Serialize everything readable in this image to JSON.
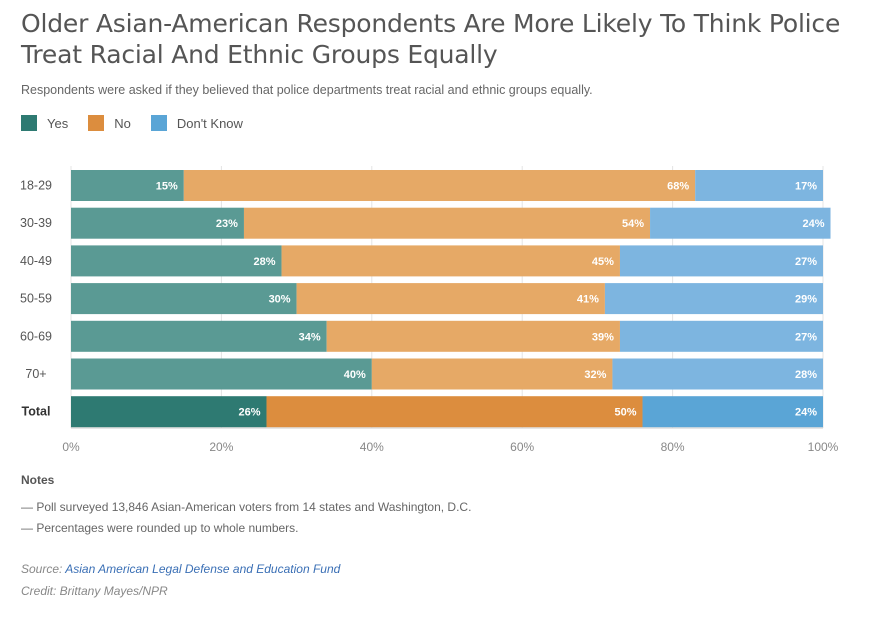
{
  "header": {
    "title": "Older Asian-American Respondents Are More Likely To Think Police Treat Racial And Ethnic Groups Equally",
    "subtitle": "Respondents were asked if they believed that police departments treat racial and ethnic groups equally."
  },
  "legend": [
    {
      "label": "Yes",
      "color": "#2e7a72"
    },
    {
      "label": "No",
      "color": "#dc8d3e"
    },
    {
      "label": "Don't Know",
      "color": "#5aa5d6"
    }
  ],
  "chart_data": {
    "type": "bar",
    "orientation": "horizontal",
    "stacked": true,
    "categories": [
      "18-29",
      "30-39",
      "40-49",
      "50-59",
      "60-69",
      "70+",
      "Total"
    ],
    "series": [
      {
        "name": "Yes",
        "values": [
          15,
          23,
          28,
          30,
          34,
          40,
          26
        ],
        "color": "#2e7a72",
        "light_color": "#5a9a94"
      },
      {
        "name": "No",
        "values": [
          68,
          54,
          45,
          41,
          39,
          32,
          50
        ],
        "color": "#dc8d3e",
        "light_color": "#e6a966"
      },
      {
        "name": "Don't Know",
        "values": [
          17,
          24,
          27,
          29,
          27,
          28,
          24
        ],
        "color": "#5aa5d6",
        "light_color": "#7db5e0"
      }
    ],
    "value_suffix": "%",
    "xlim": [
      0,
      100
    ],
    "xticks": [
      "0%",
      "20%",
      "40%",
      "60%",
      "80%",
      "100%"
    ],
    "highlight_category": "Total",
    "grid": true
  },
  "notes": {
    "heading": "Notes",
    "items": [
      "— Poll surveyed 13,846 Asian-American voters from 14 states and Washington, D.C.",
      "— Percentages were rounded up to whole numbers."
    ]
  },
  "source": {
    "prefix": "Source: ",
    "link_text": "Asian American Legal Defense and Education Fund"
  },
  "credit": "Credit: Brittany Mayes/NPR"
}
